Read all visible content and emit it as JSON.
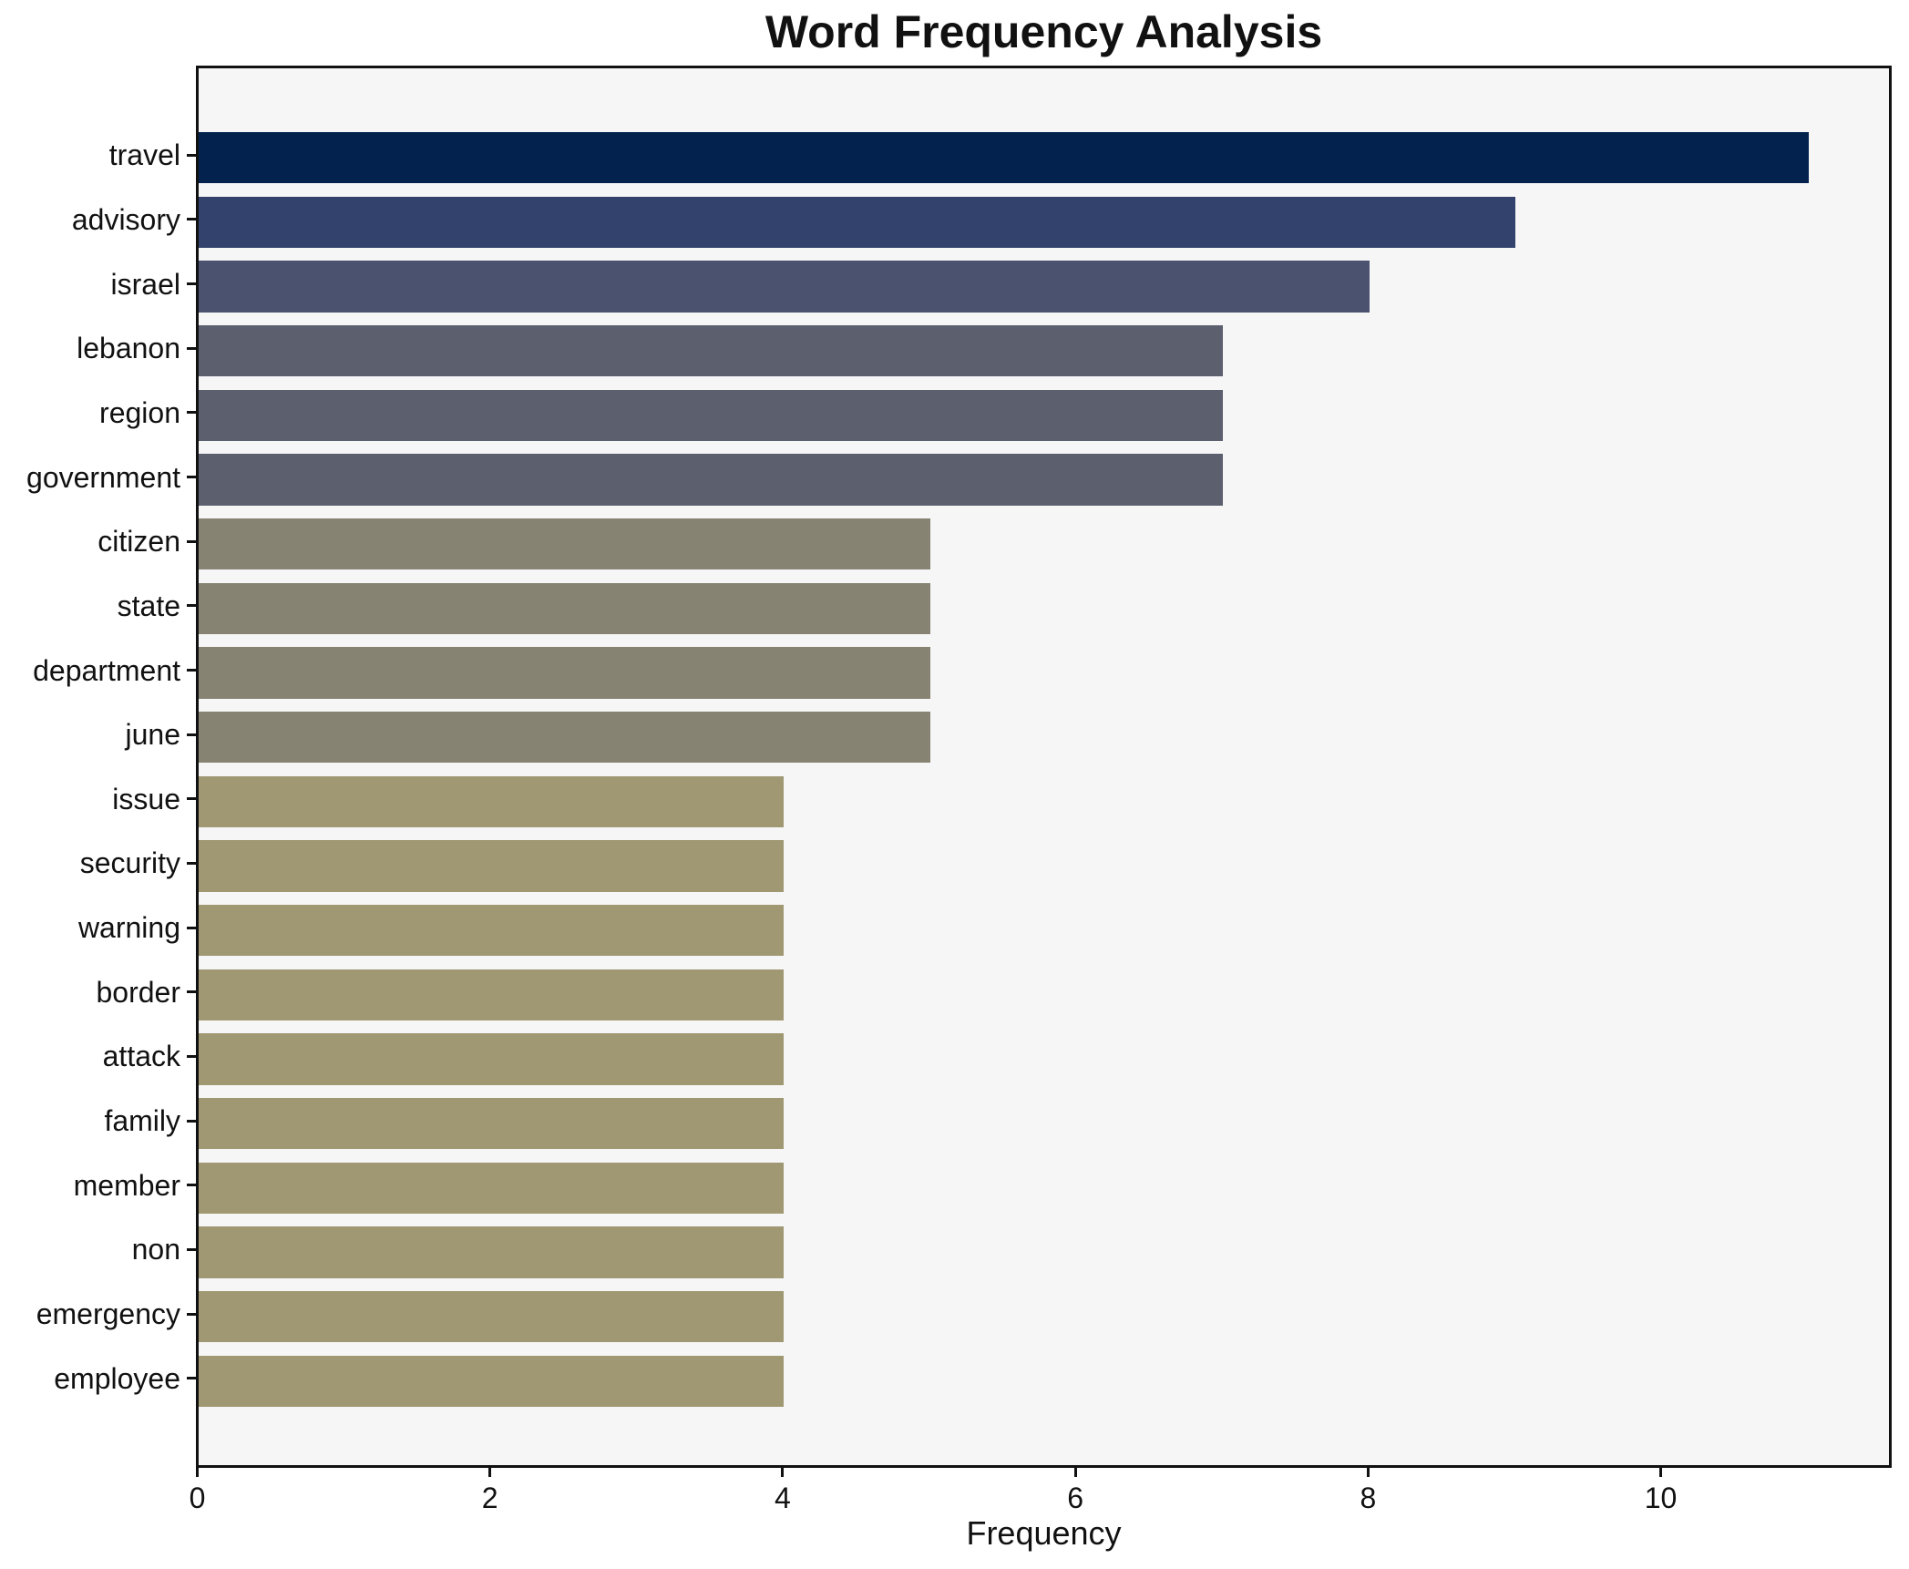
{
  "chart_data": {
    "type": "bar",
    "orientation": "horizontal",
    "title": "Word Frequency Analysis",
    "xlabel": "Frequency",
    "ylabel": "",
    "categories": [
      "travel",
      "advisory",
      "israel",
      "lebanon",
      "region",
      "government",
      "citizen",
      "state",
      "department",
      "june",
      "issue",
      "security",
      "warning",
      "border",
      "attack",
      "family",
      "member",
      "non",
      "emergency",
      "employee"
    ],
    "values": [
      11,
      9,
      8,
      7,
      7,
      7,
      5,
      5,
      5,
      5,
      4,
      4,
      4,
      4,
      4,
      4,
      4,
      4,
      4,
      4
    ],
    "bar_colors": [
      "#04224e",
      "#32426d",
      "#4a526f",
      "#5c5f6e",
      "#5c5f6e",
      "#5c5f6e",
      "#868373",
      "#868373",
      "#868373",
      "#868373",
      "#a09873",
      "#a09873",
      "#a09873",
      "#a09873",
      "#a09873",
      "#a09873",
      "#a09873",
      "#a09873",
      "#a09873",
      "#a09873"
    ],
    "xticks": [
      0,
      2,
      4,
      6,
      8,
      10
    ],
    "xlim": [
      0,
      11.55
    ],
    "grid": false,
    "legend_position": "none",
    "plot_background": "#f6f6f7",
    "page_background": "#ffffff",
    "spine_color": "#111111",
    "text_color": "#111111"
  }
}
